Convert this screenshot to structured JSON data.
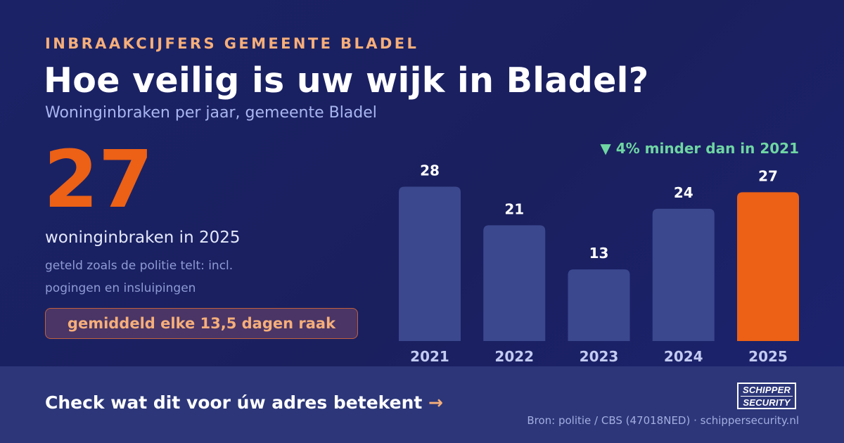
{
  "header": {
    "eyebrow": "INBRAAKCIJFERS GEMEENTE BLADEL",
    "title": "Hoe veilig is uw wijk in Bladel?",
    "subtitle": "Woninginbraken per jaar, gemeente Bladel"
  },
  "stat": {
    "value": "27",
    "label": "woninginbraken in 2025",
    "note": "geteld zoals de politie telt: incl. pogingen en insluipingen",
    "badge": "gemiddeld elke 13,5 dagen raak"
  },
  "trend": "▼ 4% minder dan in 2021",
  "chart_data": {
    "type": "bar",
    "categories": [
      "2021",
      "2022",
      "2023",
      "2024",
      "2025"
    ],
    "values": [
      28,
      21,
      13,
      24,
      27
    ],
    "highlight_index": 4,
    "colors": {
      "bar": "#3b488e",
      "highlight": "#ec6116",
      "label": "#ffffff",
      "category": "#c3cbf1"
    },
    "title": "",
    "xlabel": "",
    "ylabel": "",
    "grid": false
  },
  "footer": {
    "cta": "Check wat dit voor úw adres betekent",
    "cta_arrow": "→",
    "logo_line1": "SCHIPPER",
    "logo_line2": "SECURITY",
    "source": "Bron: politie / CBS (47018NED) · schippersecurity.nl"
  },
  "colors": {
    "accent": "#ec6116",
    "eyebrow": "#f6ae7a",
    "trend": "#6fd6a3"
  }
}
